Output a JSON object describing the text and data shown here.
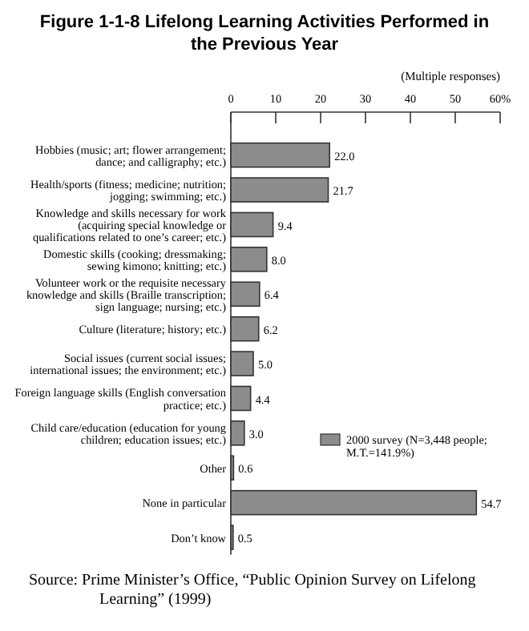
{
  "chart_data": {
    "type": "bar",
    "orientation": "horizontal",
    "title": "Figure 1-1-8 Lifelong Learning Activities Performed in the Previous Year",
    "categories": [
      "Hobbies (music; art; flower arrangement; dance; and calligraphy; etc.)",
      "Health/sports (fitness; medicine; nutrition; jogging; swimming; etc.)",
      "Knowledge and skills necessary for work (acquiring special knowledge or qualifications related to one’s career; etc.)",
      "Domestic skills (cooking; dressmaking; sewing kimono; knitting; etc.)",
      "Volunteer work or the requisite necessary knowledge and skills (Braille transcription; sign language; nursing; etc.)",
      "Culture (literature; history; etc.)",
      "Social issues (current social issues; international issues; the environment; etc.)",
      "Foreign language skills (English conversation practice; etc.)",
      "Child care/education (education for young children; education issues; etc.)",
      "Other",
      "None in particular",
      "Don’t know"
    ],
    "series": [
      {
        "name": "2000 survey (N=3,448 people; M.T.=141.9%)",
        "color": "#8c8c8c",
        "values": [
          22.0,
          21.7,
          9.4,
          8.0,
          6.4,
          6.2,
          5.0,
          4.4,
          3.0,
          0.6,
          54.7,
          0.5
        ],
        "value_labels": [
          "22.0",
          "21.7",
          "9.4",
          "8.0",
          "6.4",
          "6.2",
          "5.0",
          "4.4",
          "3.0",
          "0.6",
          "54.7",
          "0.5"
        ]
      }
    ],
    "xlim": [
      0,
      60
    ],
    "xticks": [
      0,
      10,
      20,
      30,
      40,
      50,
      {
        "value": 60,
        "label": "60%"
      }
    ],
    "legend": "bottom right",
    "annotations": [
      "(Multiple responses)",
      "Source: Prime Minister’s Office, “Public Opinion Survey on Lifelong Learning” (1999)"
    ]
  }
}
